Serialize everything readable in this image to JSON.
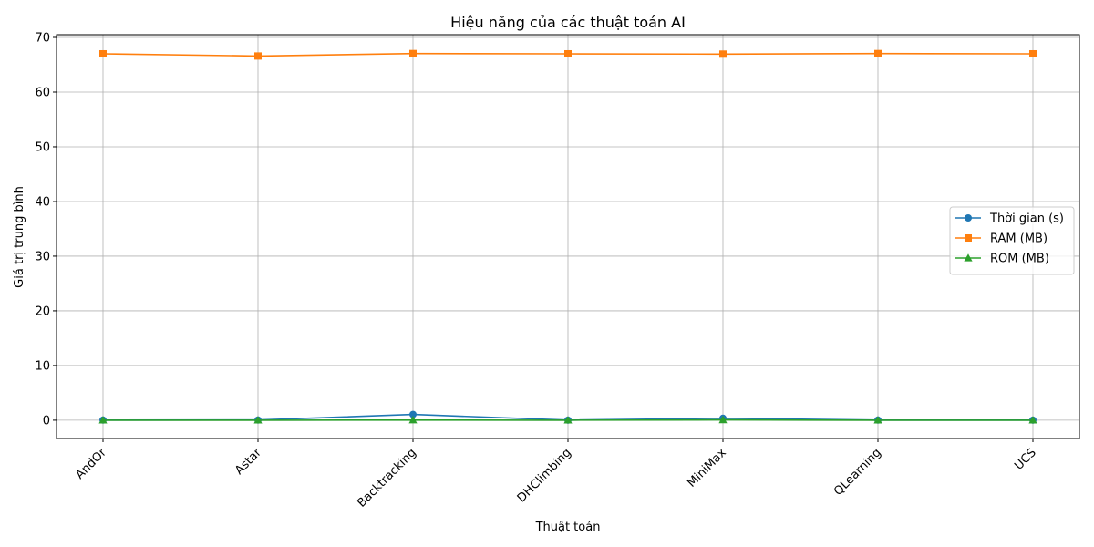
{
  "chart_data": {
    "type": "line",
    "title": "Hiệu năng của các thuật toán AI",
    "xlabel": "Thuật toán",
    "ylabel": "Giá trị trung bình",
    "categories": [
      "AndOr",
      "Astar",
      "Backtracking",
      "DHClimbing",
      "MiniMax",
      "QLearning",
      "UCS"
    ],
    "ylim": [
      -3.35,
      70.5
    ],
    "yticks": [
      0,
      10,
      20,
      30,
      40,
      50,
      60,
      70
    ],
    "grid": true,
    "legend_position": "right",
    "series": [
      {
        "name": "Thời gian (s)",
        "color": "#1f77b4",
        "marker": "circle",
        "values": [
          0.02,
          0.03,
          1.05,
          0.01,
          0.35,
          0.02,
          0.01
        ]
      },
      {
        "name": "RAM (MB)",
        "color": "#ff7f0e",
        "marker": "square",
        "values": [
          67.0,
          66.6,
          67.05,
          67.0,
          66.95,
          67.05,
          67.0
        ]
      },
      {
        "name": "ROM (MB)",
        "color": "#2ca02c",
        "marker": "triangle",
        "values": [
          0.0,
          0.0,
          0.02,
          0.0,
          0.05,
          0.0,
          0.0
        ]
      }
    ]
  }
}
